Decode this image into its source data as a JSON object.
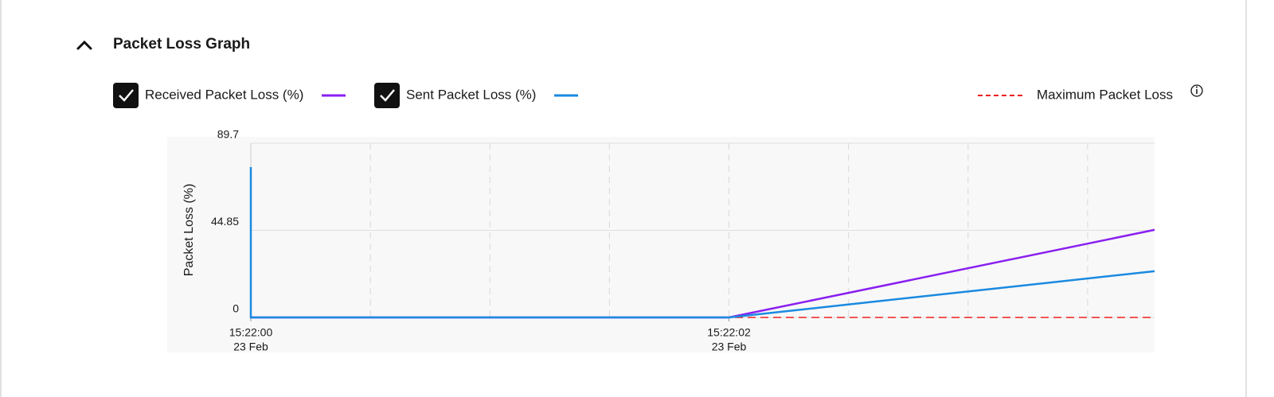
{
  "header": {
    "title": "Packet Loss Graph"
  },
  "chart_data": {
    "type": "line",
    "y_label": "Packet Loss (%)",
    "x": [
      0,
      0,
      0,
      2,
      3.78
    ],
    "xlim": [
      0,
      3.78
    ],
    "xticks": [
      {
        "value": 0,
        "label": "15:22:00"
      },
      {
        "value": 2,
        "label": "15:22:02"
      }
    ],
    "xtick_dates": [
      "23 Feb",
      "23 Feb"
    ],
    "xgrid": [
      0.5,
      1,
      1.5,
      2,
      2.5,
      3,
      3.5
    ],
    "ylim": [
      0,
      89.7
    ],
    "yticks": [
      0,
      44.85,
      89.7
    ],
    "series": [
      {
        "name": "Received Packet Loss (%)",
        "color": "#8a1ff0",
        "values": [
          0,
          0,
          0,
          0,
          45.1
        ]
      },
      {
        "name": "Sent Packet Loss (%)",
        "color": "#1a8ae0",
        "values": [
          0,
          77.4,
          0,
          0,
          23.8
        ]
      }
    ],
    "threshold": {
      "name": "Maximum Packet Loss",
      "color": "#f02020",
      "value": 0
    }
  }
}
